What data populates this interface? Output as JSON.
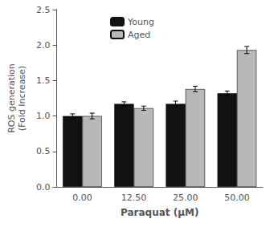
{
  "chart_data": {
    "type": "bar",
    "categories": [
      "0.00",
      "12.50",
      "25.00",
      "50.00"
    ],
    "series": [
      {
        "name": "Young",
        "color": "#111111",
        "values": [
          1.0,
          1.17,
          1.17,
          1.32
        ],
        "errors": [
          0.03,
          0.03,
          0.04,
          0.03
        ]
      },
      {
        "name": "Aged",
        "color": "#b8b8b8",
        "values": [
          1.0,
          1.11,
          1.38,
          1.93
        ],
        "errors": [
          0.04,
          0.03,
          0.04,
          0.05
        ]
      }
    ],
    "xlabel": "Paraquat (μM)",
    "ylabel": "ROS generation\n(Fold Increase)",
    "ylim": [
      0.0,
      2.5
    ],
    "yticks": [
      {
        "value": 0,
        "label": "0.0"
      },
      0.5,
      {
        "value": 1,
        "label": "1.0"
      },
      1.5,
      {
        "value": 2,
        "label": "2.0"
      },
      2.5
    ],
    "grid": false,
    "legend": "upper left"
  }
}
